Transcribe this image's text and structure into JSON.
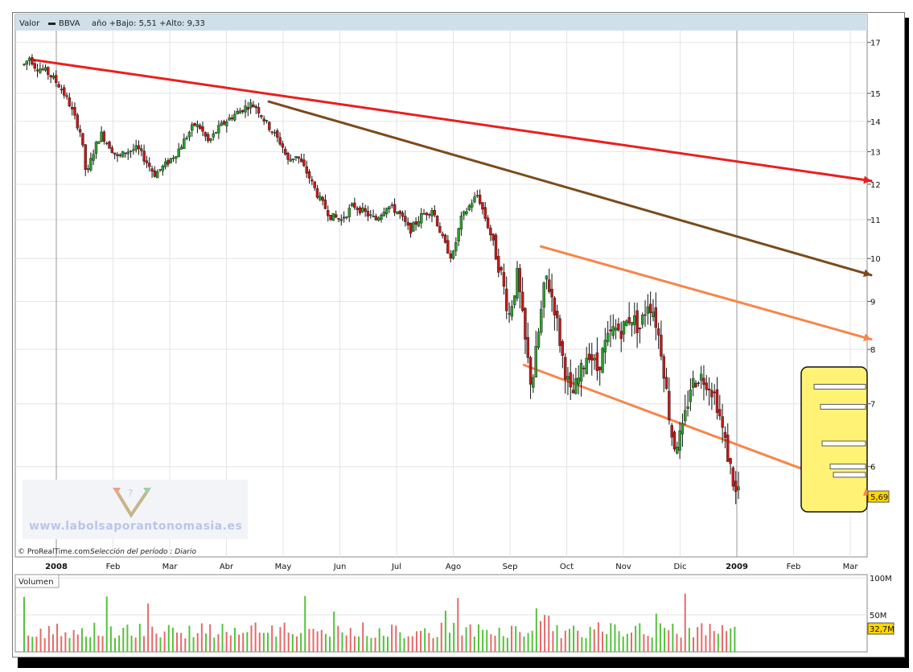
{
  "header": {
    "label": "Valor",
    "ticker": "BBVA",
    "range_text": "año +Bajo: 5,51 +Alto: 9,33"
  },
  "footer": {
    "brand": "© ProRealTime.com",
    "selection": "Selección del período : Diario"
  },
  "watermark": {
    "text": "www.labolsaporantonomasia.es"
  },
  "volume_panel": {
    "title": "Volumen"
  },
  "price_badge": {
    "value": "5,69"
  },
  "volume_badge": {
    "value": "32,7M"
  },
  "chart_data": {
    "type": "candlestick",
    "title": "BBVA",
    "x_axis": {
      "labels": [
        {
          "text": "2008",
          "bold": true
        },
        {
          "text": "Feb",
          "bold": false
        },
        {
          "text": "Mar",
          "bold": false
        },
        {
          "text": "Abr",
          "bold": false
        },
        {
          "text": "May",
          "bold": false
        },
        {
          "text": "Jun",
          "bold": false
        },
        {
          "text": "Jul",
          "bold": false
        },
        {
          "text": "Ago",
          "bold": false
        },
        {
          "text": "Sep",
          "bold": false
        },
        {
          "text": "Oct",
          "bold": false
        },
        {
          "text": "Nov",
          "bold": false
        },
        {
          "text": "Dic",
          "bold": false
        },
        {
          "text": "2009",
          "bold": true
        },
        {
          "text": "Feb",
          "bold": false
        },
        {
          "text": "Mar",
          "bold": false
        }
      ],
      "month_index": [
        0,
        1,
        2,
        3,
        4,
        5,
        6,
        7,
        8,
        9,
        10,
        11,
        12,
        13,
        14
      ]
    },
    "y_axis": {
      "scale": "log",
      "ylim": [
        5,
        17.5
      ],
      "ticks": [
        17,
        15,
        14,
        13,
        12,
        11,
        10,
        9,
        8,
        7,
        6
      ]
    },
    "price_path": [
      [
        0.0,
        16.1
      ],
      [
        0.1,
        16.4
      ],
      [
        0.2,
        16.0
      ],
      [
        0.35,
        15.9
      ],
      [
        0.5,
        15.6
      ],
      [
        0.65,
        15.2
      ],
      [
        0.8,
        14.6
      ],
      [
        1.0,
        13.6
      ],
      [
        1.1,
        12.2
      ],
      [
        1.2,
        12.9
      ],
      [
        1.35,
        13.6
      ],
      [
        1.5,
        13.2
      ],
      [
        1.65,
        12.8
      ],
      [
        1.8,
        13.0
      ],
      [
        2.0,
        13.1
      ],
      [
        2.15,
        12.7
      ],
      [
        2.3,
        12.3
      ],
      [
        2.5,
        12.6
      ],
      [
        2.7,
        13.0
      ],
      [
        2.9,
        13.6
      ],
      [
        3.0,
        13.9
      ],
      [
        3.1,
        13.8
      ],
      [
        3.25,
        13.3
      ],
      [
        3.4,
        13.7
      ],
      [
        3.55,
        14.0
      ],
      [
        3.75,
        14.3
      ],
      [
        3.9,
        14.5
      ],
      [
        4.0,
        14.6
      ],
      [
        4.1,
        14.5
      ],
      [
        4.25,
        14.0
      ],
      [
        4.4,
        13.6
      ],
      [
        4.55,
        13.2
      ],
      [
        4.65,
        12.7
      ],
      [
        4.8,
        12.9
      ],
      [
        5.0,
        12.3
      ],
      [
        5.2,
        11.6
      ],
      [
        5.4,
        11.1
      ],
      [
        5.6,
        11.0
      ],
      [
        5.8,
        11.4
      ],
      [
        6.0,
        11.2
      ],
      [
        6.2,
        11.0
      ],
      [
        6.4,
        11.4
      ],
      [
        6.6,
        11.2
      ],
      [
        6.8,
        10.7
      ],
      [
        7.0,
        11.1
      ],
      [
        7.2,
        11.3
      ],
      [
        7.4,
        10.4
      ],
      [
        7.55,
        10.0
      ],
      [
        7.7,
        11.0
      ],
      [
        7.9,
        11.5
      ],
      [
        8.0,
        11.7
      ],
      [
        8.1,
        11.2
      ],
      [
        8.25,
        10.5
      ],
      [
        8.4,
        9.7
      ],
      [
        8.55,
        8.7
      ],
      [
        8.7,
        9.6
      ],
      [
        8.85,
        8.0
      ],
      [
        8.95,
        7.3
      ],
      [
        9.1,
        8.6
      ],
      [
        9.2,
        9.6
      ],
      [
        9.35,
        8.9
      ],
      [
        9.5,
        7.8
      ],
      [
        9.65,
        7.1
      ],
      [
        9.8,
        7.5
      ],
      [
        9.95,
        8.0
      ],
      [
        10.1,
        7.6
      ],
      [
        10.25,
        8.1
      ],
      [
        10.4,
        8.4
      ],
      [
        10.55,
        8.4
      ],
      [
        10.7,
        8.7
      ],
      [
        10.85,
        8.4
      ],
      [
        11.0,
        9.0
      ],
      [
        11.1,
        8.8
      ],
      [
        11.25,
        7.9
      ],
      [
        11.35,
        7.0
      ],
      [
        11.45,
        6.3
      ],
      [
        11.6,
        6.5
      ],
      [
        11.75,
        7.3
      ],
      [
        11.9,
        7.5
      ],
      [
        12.05,
        7.4
      ],
      [
        12.2,
        7.1
      ],
      [
        12.35,
        6.4
      ],
      [
        12.45,
        6.0
      ],
      [
        12.55,
        5.6
      ],
      [
        12.6,
        5.7
      ]
    ],
    "trendlines": [
      {
        "name": "red",
        "color": "#e8201e",
        "p1": [
          0.0,
          16.3
        ],
        "p2": [
          14.0,
          12.1
        ],
        "arrow": true
      },
      {
        "name": "brown",
        "color": "#7b4a1a",
        "p1": [
          4.2,
          14.7
        ],
        "p2": [
          14.0,
          9.6
        ],
        "arrow": true
      },
      {
        "name": "orange-upper",
        "color": "#f6864a",
        "p1": [
          9.0,
          10.3
        ],
        "p2": [
          14.0,
          8.2
        ],
        "arrow": true
      },
      {
        "name": "orange-lower",
        "color": "#f6864a",
        "p1": [
          8.7,
          7.7
        ],
        "p2": [
          14.0,
          5.6
        ],
        "arrow": true
      }
    ],
    "volume": {
      "ylim": [
        0,
        100
      ],
      "ticks": [
        {
          "text": "100M",
          "value": 100
        },
        {
          "text": "50M",
          "value": 50
        }
      ],
      "last_value": 32.7
    }
  },
  "colors": {
    "up": "#2c9f2c",
    "down": "#c41a1a",
    "vol_up": "#54c23a",
    "vol_down": "#e36a6a",
    "highlight_fill": "#fff275",
    "badge_fill": "#ffd700",
    "header_bg": "#cfe0ea"
  }
}
